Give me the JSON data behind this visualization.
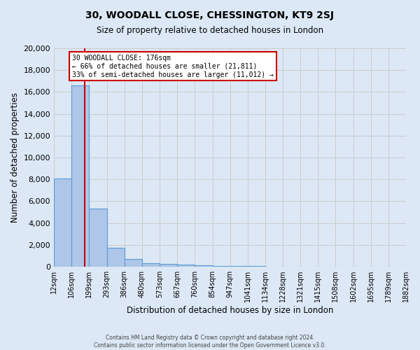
{
  "title": "30, WOODALL CLOSE, CHESSINGTON, KT9 2SJ",
  "subtitle": "Size of property relative to detached houses in London",
  "xlabel": "Distribution of detached houses by size in London",
  "ylabel": "Number of detached properties",
  "bin_edges": [
    12,
    106,
    199,
    293,
    386,
    480,
    573,
    667,
    760,
    854,
    947,
    1041,
    1134,
    1228,
    1321,
    1415,
    1508,
    1602,
    1695,
    1789,
    1882
  ],
  "bar_heights": [
    8100,
    16600,
    5300,
    1750,
    700,
    350,
    250,
    200,
    150,
    80,
    50,
    40,
    30,
    20,
    15,
    10,
    8,
    5,
    3,
    2
  ],
  "bar_color": "#aec6e8",
  "bar_edge_color": "#5b9bd5",
  "property_size": 176,
  "red_line_color": "#cc0000",
  "annotation_line1": "30 WOODALL CLOSE: 176sqm",
  "annotation_line2": "← 66% of detached houses are smaller (21,811)",
  "annotation_line3": "33% of semi-detached houses are larger (11,012) →",
  "annotation_box_color": "#ffffff",
  "annotation_box_edge_color": "#cc0000",
  "ylim": [
    0,
    20000
  ],
  "yticks": [
    0,
    2000,
    4000,
    6000,
    8000,
    10000,
    12000,
    14000,
    16000,
    18000,
    20000
  ],
  "grid_color": "#cccccc",
  "bg_color": "#dce8f5",
  "footer_line1": "Contains HM Land Registry data © Crown copyright and database right 2024.",
  "footer_line2": "Contains public sector information licensed under the Open Government Licence v3.0."
}
